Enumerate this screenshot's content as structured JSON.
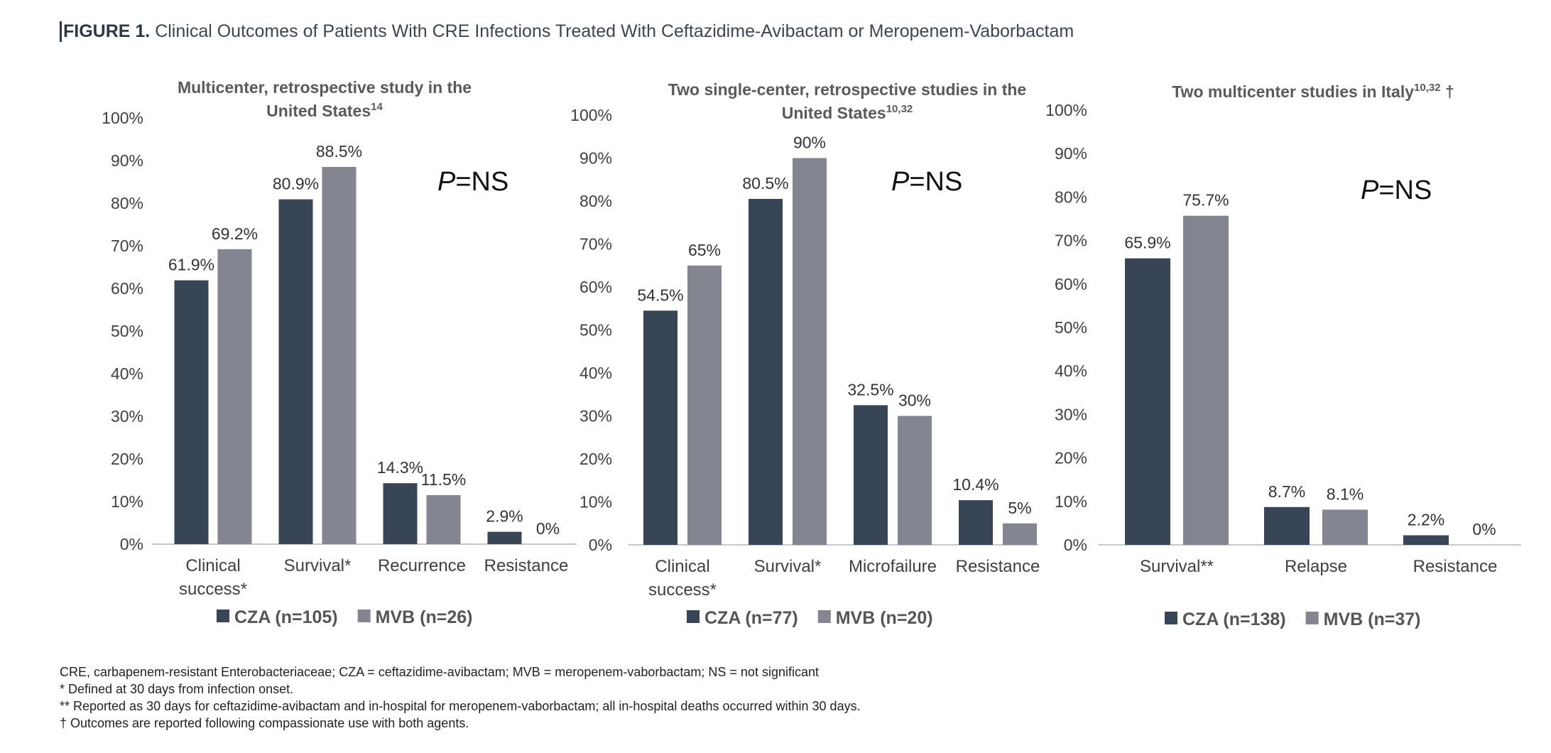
{
  "figure": {
    "label": "FIGURE 1.",
    "title": "Clinical Outcomes of Patients With CRE Infections Treated With Ceftazidime-Avibactam or Meropenem-Vaborbactam"
  },
  "colors": {
    "cza": "#374556",
    "mvb": "#838590",
    "axis": "#c8c8c8",
    "text": "#404040"
  },
  "chart_data": [
    {
      "type": "bar",
      "title_lines": [
        "Multicenter, retrospective study in the",
        "United States"
      ],
      "title_sup": "14",
      "categories": [
        [
          "Clinical",
          "success*"
        ],
        [
          "Survival*"
        ],
        [
          "Recurrence"
        ],
        [
          "Resistance"
        ]
      ],
      "series": [
        {
          "name": "CZA (n=105)",
          "values": [
            61.9,
            80.9,
            14.3,
            2.9
          ],
          "labels": [
            "61.9%",
            "80.9%",
            "14.3%",
            "2.9%"
          ]
        },
        {
          "name": "MVB (n=26)",
          "values": [
            69.2,
            88.5,
            11.5,
            0
          ],
          "labels": [
            "69.2%",
            "88.5%",
            "11.5%",
            "0%"
          ]
        }
      ],
      "ylim": [
        0,
        100
      ],
      "yticks": [
        "0%",
        "10%",
        "20%",
        "30%",
        "40%",
        "50%",
        "60%",
        "70%",
        "80%",
        "90%",
        "100%"
      ],
      "annotation": {
        "italic": "P",
        "rest": "=NS"
      },
      "legend": "bottom"
    },
    {
      "type": "bar",
      "title_lines": [
        "Two single-center, retrospective studies in the",
        "United States"
      ],
      "title_sup": "10,32",
      "categories": [
        [
          "Clinical",
          "success*"
        ],
        [
          "Survival*"
        ],
        [
          "Microfailure"
        ],
        [
          "Resistance"
        ]
      ],
      "series": [
        {
          "name": "CZA (n=77)",
          "values": [
            54.5,
            80.5,
            32.5,
            10.4
          ],
          "labels": [
            "54.5%",
            "80.5%",
            "32.5%",
            "10.4%"
          ]
        },
        {
          "name": "MVB (n=20)",
          "values": [
            65,
            90,
            30,
            5
          ],
          "labels": [
            "65%",
            "90%",
            "30%",
            "5%"
          ]
        }
      ],
      "ylim": [
        0,
        100
      ],
      "yticks": [
        "0%",
        "10%",
        "20%",
        "30%",
        "40%",
        "50%",
        "60%",
        "70%",
        "80%",
        "90%",
        "100%"
      ],
      "annotation": {
        "italic": "P",
        "rest": "=NS"
      },
      "legend": "bottom"
    },
    {
      "type": "bar",
      "title_lines": [
        "Two multicenter studies in Italy"
      ],
      "title_sup": "10,32",
      "title_suffix": " †",
      "categories": [
        [
          "Survival**"
        ],
        [
          "Relapse"
        ],
        [
          "Resistance"
        ]
      ],
      "series": [
        {
          "name": "CZA (n=138)",
          "values": [
            65.9,
            8.7,
            2.2
          ],
          "labels": [
            "65.9%",
            "8.7%",
            "2.2%"
          ]
        },
        {
          "name": "MVB (n=37)",
          "values": [
            75.7,
            8.1,
            0
          ],
          "labels": [
            "75.7%",
            "8.1%",
            "0%"
          ]
        }
      ],
      "ylim": [
        0,
        100
      ],
      "yticks": [
        "0%",
        "10%",
        "20%",
        "30%",
        "40%",
        "50%",
        "60%",
        "70%",
        "80%",
        "90%",
        "100%"
      ],
      "annotation": {
        "italic": "P",
        "rest": "=NS"
      },
      "legend": "bottom"
    }
  ],
  "footnotes": [
    "CRE, carbapenem-resistant Enterobacteriaceae; CZA = ceftazidime-avibactam; MVB = meropenem-vaborbactam; NS = not significant",
    "* Defined at 30 days from infection onset.",
    "** Reported as 30 days for ceftazidime-avibactam and in-hospital for meropenem-vaborbactam; all in-hospital deaths occurred within 30 days.",
    "† Outcomes are reported following compassionate use with both agents."
  ]
}
